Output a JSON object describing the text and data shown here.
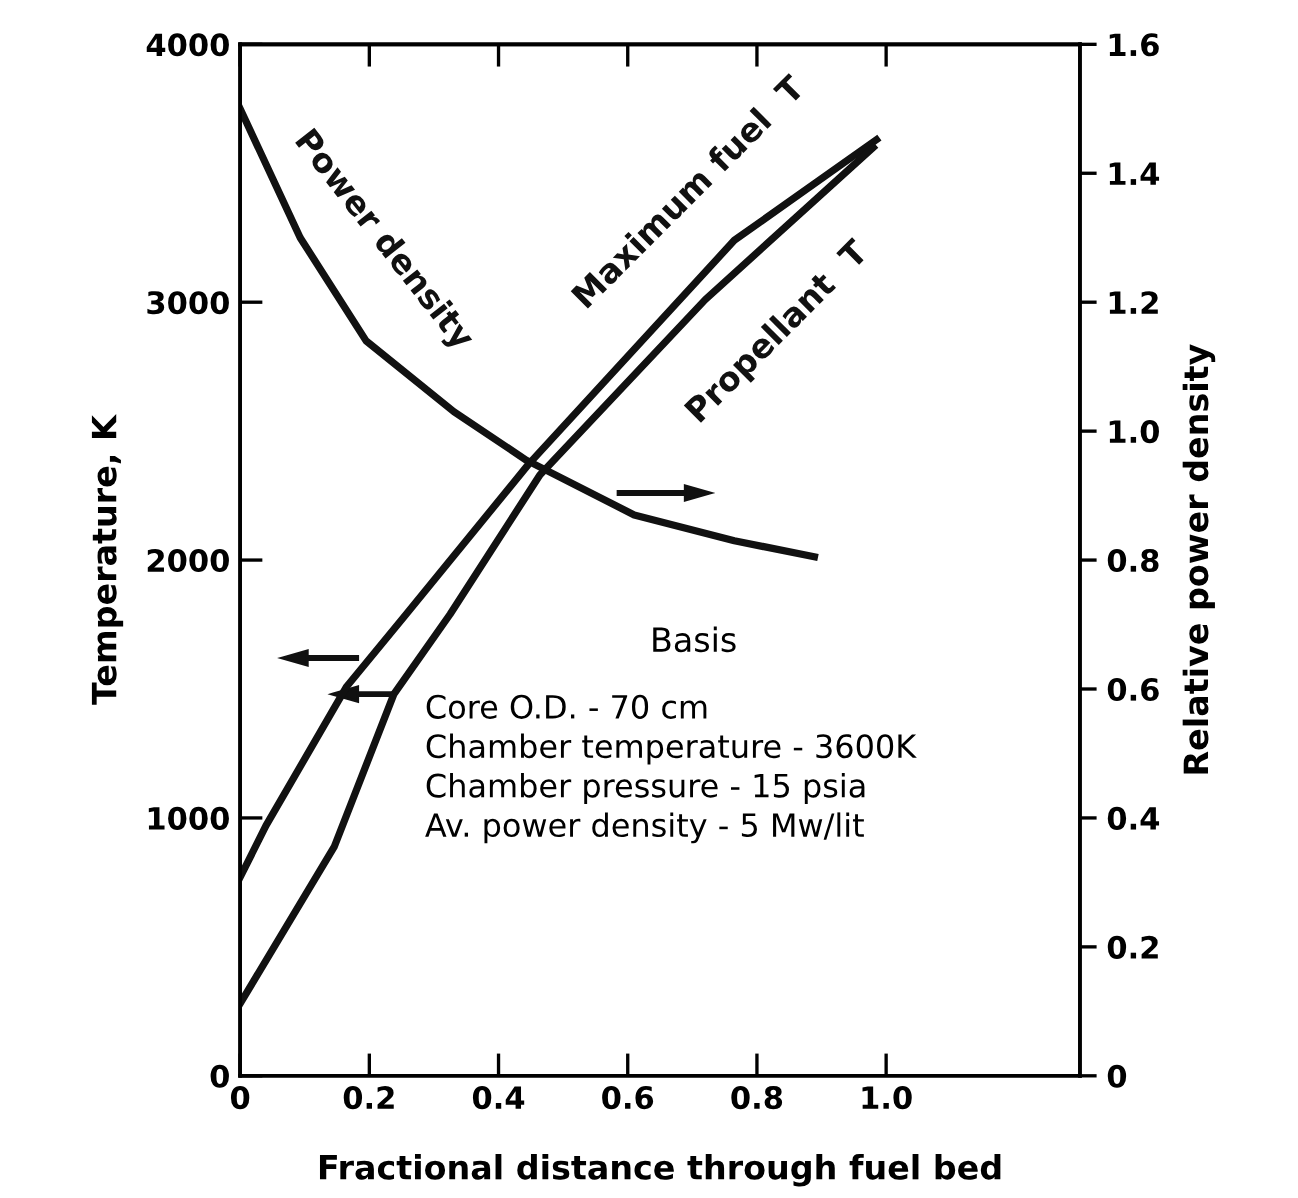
{
  "chart_data": {
    "type": "line",
    "xlabel": "Fractional distance through fuel bed",
    "ylabel": "Temperature, K",
    "y2label": "Relative power density",
    "xlim": [
      0,
      1.3
    ],
    "xticks": [
      0,
      0.2,
      0.4,
      0.6,
      0.8,
      {
        "value": 1.0,
        "label": "1.0"
      }
    ],
    "ylim": [
      0,
      4000
    ],
    "yticks": [
      0,
      1000,
      2000,
      3000,
      4000
    ],
    "y2lim": [
      0,
      1.6
    ],
    "y2ticks": [
      0,
      0.2,
      0.4,
      0.6,
      0.8,
      {
        "value": 1.0,
        "label": "1.0"
      },
      1.2,
      1.4,
      1.6
    ],
    "grid": false,
    "legend": false,
    "marker": "none",
    "line_style": "solid",
    "series": [
      {
        "name": "Power density",
        "color": "#111111",
        "axis": "y2",
        "x": [
          0,
          0.093,
          0.195,
          0.331,
          0.443,
          0.61,
          0.765,
          0.889
        ],
        "values": [
          1.5,
          1.3,
          1.14,
          1.03,
          0.955,
          0.87,
          0.83,
          0.805
        ]
      },
      {
        "name": "Maximum fuel  T",
        "color": "#111111",
        "x": [
          0,
          0.04,
          0.165,
          0.257,
          0.446,
          0.765,
          0.985
        ],
        "values": [
          770,
          970,
          1510,
          1790,
          2370,
          3240,
          3630
        ]
      },
      {
        "name": "Propellant  T",
        "color": "#111111",
        "x": [
          0,
          0.146,
          0.238,
          0.325,
          0.464,
          0.72,
          0.98
        ],
        "values": [
          280,
          890,
          1480,
          1790,
          2330,
          3010,
          3600
        ]
      }
    ],
    "annotations": [
      "Basis",
      "Core O.D. - 70 cm\nChamber temperature - 3600K\nChamber pressure - 15 psia\nAv. power density - 5 Mw/lit"
    ]
  }
}
